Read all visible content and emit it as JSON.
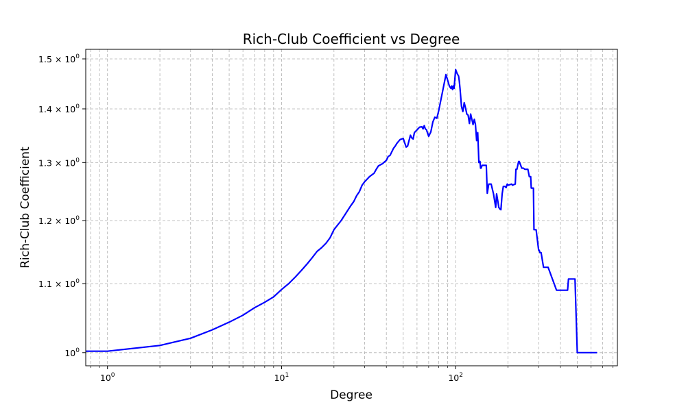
{
  "chart_data": {
    "type": "line",
    "title": "Rich-Club Coefficient vs Degree",
    "xlabel": "Degree",
    "ylabel": "Rich-Club Coefficient",
    "x_scale": "log",
    "y_scale": "log",
    "xlim": [
      0.75,
      850
    ],
    "ylim": [
      0.982,
      1.52
    ],
    "grid": true,
    "grid_style": "dashed",
    "line_color": "#0000ff",
    "x_ticks": [
      {
        "value": 1,
        "base": "10",
        "exp": "0"
      },
      {
        "value": 10,
        "base": "10",
        "exp": "1"
      },
      {
        "value": 100,
        "base": "10",
        "exp": "2"
      }
    ],
    "y_ticks": [
      {
        "value": 1.0,
        "mant": "10",
        "exp": "0",
        "plain": true
      },
      {
        "value": 1.1,
        "mant": "1.1 × 10",
        "exp": "0"
      },
      {
        "value": 1.2,
        "mant": "1.2 × 10",
        "exp": "0"
      },
      {
        "value": 1.3,
        "mant": "1.3 × 10",
        "exp": "0"
      },
      {
        "value": 1.4,
        "mant": "1.4 × 10",
        "exp": "0"
      },
      {
        "value": 1.5,
        "mant": "1.5 × 10",
        "exp": "0"
      }
    ],
    "series": [
      {
        "x": [
          0.75,
          1,
          2,
          3,
          4,
          5,
          6,
          7,
          8,
          9,
          10,
          11,
          12,
          13,
          14,
          15,
          16,
          17,
          18,
          19,
          20,
          22,
          24,
          25,
          26,
          27,
          28,
          29,
          30,
          32,
          34,
          35,
          36,
          38,
          40,
          41,
          42,
          44,
          45,
          46,
          48,
          50,
          52,
          53,
          55,
          56,
          57,
          58,
          60,
          62,
          64,
          65,
          66,
          67,
          68,
          70,
          71,
          72,
          74,
          76,
          78,
          80,
          84,
          88,
          92,
          94,
          95,
          96,
          97,
          98,
          100,
          102,
          104,
          105,
          106,
          108,
          110,
          112,
          114,
          116,
          118,
          120,
          122,
          126,
          128,
          130,
          132,
          134,
          136,
          138,
          139,
          140,
          142,
          145,
          148,
          150,
          152,
          155,
          160,
          165,
          170,
          172,
          175,
          177,
          180,
          182,
          185,
          188,
          190,
          192,
          195,
          198,
          200,
          210,
          212,
          220,
          222,
          225,
          230,
          232,
          240,
          245,
          250,
          255,
          260,
          265,
          270,
          272,
          275,
          278,
          280,
          282,
          285,
          290,
          300,
          302,
          305,
          310,
          320,
          340,
          380,
          420,
          440,
          445,
          460,
          480,
          485,
          500,
          550,
          600,
          650
        ],
        "y": [
          1.002,
          1.002,
          1.01,
          1.02,
          1.032,
          1.043,
          1.053,
          1.064,
          1.072,
          1.08,
          1.091,
          1.1,
          1.11,
          1.12,
          1.13,
          1.14,
          1.15,
          1.156,
          1.163,
          1.172,
          1.185,
          1.2,
          1.217,
          1.225,
          1.232,
          1.242,
          1.249,
          1.26,
          1.266,
          1.275,
          1.281,
          1.288,
          1.294,
          1.298,
          1.304,
          1.311,
          1.313,
          1.326,
          1.33,
          1.335,
          1.342,
          1.344,
          1.328,
          1.33,
          1.35,
          1.345,
          1.343,
          1.355,
          1.36,
          1.365,
          1.366,
          1.362,
          1.368,
          1.362,
          1.36,
          1.348,
          1.352,
          1.356,
          1.375,
          1.384,
          1.382,
          1.397,
          1.433,
          1.468,
          1.445,
          1.44,
          1.445,
          1.438,
          1.445,
          1.44,
          1.478,
          1.47,
          1.465,
          1.455,
          1.44,
          1.405,
          1.395,
          1.412,
          1.402,
          1.39,
          1.388,
          1.372,
          1.39,
          1.37,
          1.38,
          1.37,
          1.34,
          1.355,
          1.3,
          1.302,
          1.29,
          1.29,
          1.295,
          1.295,
          1.295,
          1.295,
          1.246,
          1.262,
          1.262,
          1.245,
          1.222,
          1.245,
          1.232,
          1.222,
          1.219,
          1.218,
          1.245,
          1.258,
          1.258,
          1.258,
          1.256,
          1.262,
          1.26,
          1.262,
          1.26,
          1.262,
          1.288,
          1.288,
          1.302,
          1.302,
          1.29,
          1.29,
          1.288,
          1.288,
          1.288,
          1.275,
          1.275,
          1.255,
          1.255,
          1.255,
          1.255,
          1.185,
          1.185,
          1.185,
          1.152,
          1.152,
          1.148,
          1.148,
          1.125,
          1.125,
          1.09,
          1.09,
          1.09,
          1.107,
          1.107,
          1.107,
          1.107,
          1.0,
          1.0,
          1.0,
          1.0
        ]
      }
    ]
  }
}
